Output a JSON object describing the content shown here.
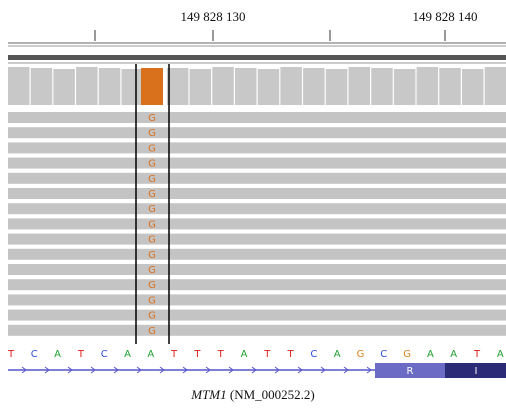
{
  "ruler": {
    "labels": [
      "149 828 130",
      "149 828 140"
    ]
  },
  "reads": {
    "bases": [
      "G",
      "G",
      "G",
      "G",
      "G",
      "G",
      "G",
      "G",
      "G",
      "G",
      "G",
      "G",
      "G",
      "G",
      "G"
    ]
  },
  "reference": {
    "sequence": [
      "T",
      "C",
      "A",
      "T",
      "C",
      "A",
      "A",
      "T",
      "T",
      "T",
      "A",
      "T",
      "T",
      "C",
      "A",
      "G",
      "C",
      "G",
      "A",
      "A",
      "T",
      "A"
    ]
  },
  "gene": {
    "amino_acids": [
      "R",
      "I"
    ],
    "name": "MTM1",
    "transcript": "(NM_000252.2)"
  }
}
